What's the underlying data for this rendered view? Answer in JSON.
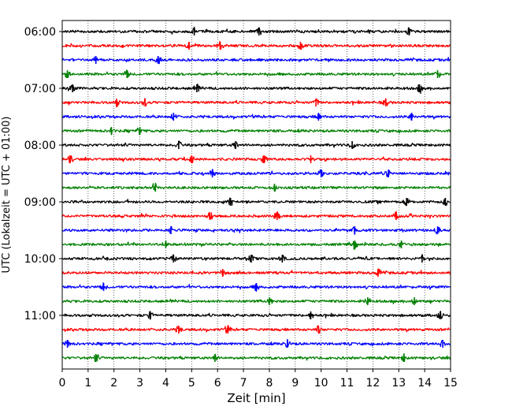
{
  "chart_data": {
    "type": "line",
    "title": "",
    "xlabel": "Zeit  [min]",
    "ylabel": "UTC (Lokalzeit = UTC + 01:00)",
    "xlim": [
      0,
      15
    ],
    "x_ticks": [
      "0",
      "1",
      "2",
      "3",
      "4",
      "5",
      "6",
      "7",
      "8",
      "9",
      "10",
      "11",
      "12",
      "13",
      "14",
      "15"
    ],
    "y_tick_labels": [
      "06:00",
      "07:00",
      "08:00",
      "09:00",
      "10:00",
      "11:00"
    ],
    "y_tick_rows": [
      0,
      4,
      8,
      12,
      16,
      20
    ],
    "grid": "vertical-dotted",
    "trace_colors": [
      "#000000",
      "#ff0000",
      "#0000ff",
      "#008000"
    ],
    "traces": [
      {
        "start": "06:00",
        "color": "#000000",
        "events_min": [
          5.1,
          7.6,
          13.4
        ]
      },
      {
        "start": "06:15",
        "color": "#ff0000",
        "events_min": [
          4.9,
          6.1,
          9.2
        ]
      },
      {
        "start": "06:30",
        "color": "#0000ff",
        "events_min": [
          1.3,
          3.7
        ]
      },
      {
        "start": "06:45",
        "color": "#008000",
        "events_min": [
          0.2,
          2.5,
          14.5
        ]
      },
      {
        "start": "07:00",
        "color": "#000000",
        "events_min": [
          0.4,
          5.2,
          13.8
        ]
      },
      {
        "start": "07:15",
        "color": "#ff0000",
        "events_min": [
          2.1,
          3.2,
          9.8,
          12.5
        ]
      },
      {
        "start": "07:30",
        "color": "#0000ff",
        "events_min": [
          4.3,
          9.9,
          13.5
        ]
      },
      {
        "start": "07:45",
        "color": "#008000",
        "events_min": [
          1.9,
          3.0
        ]
      },
      {
        "start": "08:00",
        "color": "#000000",
        "events_min": [
          4.5,
          6.7,
          11.2
        ]
      },
      {
        "start": "08:15",
        "color": "#ff0000",
        "events_min": [
          0.3,
          5.0,
          7.8,
          9.6
        ]
      },
      {
        "start": "08:30",
        "color": "#0000ff",
        "events_min": [
          5.8,
          10.0,
          12.6
        ]
      },
      {
        "start": "08:45",
        "color": "#008000",
        "events_min": [
          3.6,
          8.2
        ]
      },
      {
        "start": "09:00",
        "color": "#000000",
        "events_min": [
          6.5,
          13.3,
          14.8
        ]
      },
      {
        "start": "09:15",
        "color": "#ff0000",
        "events_min": [
          5.7,
          8.3,
          12.9
        ]
      },
      {
        "start": "09:30",
        "color": "#0000ff",
        "events_min": [
          4.2,
          11.3,
          14.5
        ]
      },
      {
        "start": "09:45",
        "color": "#008000",
        "events_min": [
          4.0,
          11.3,
          13.1
        ]
      },
      {
        "start": "10:00",
        "color": "#000000",
        "events_min": [
          4.3,
          7.3,
          8.5,
          13.9
        ]
      },
      {
        "start": "10:15",
        "color": "#ff0000",
        "events_min": [
          6.2,
          12.2
        ]
      },
      {
        "start": "10:30",
        "color": "#0000ff",
        "events_min": [
          1.6,
          7.5
        ]
      },
      {
        "start": "10:45",
        "color": "#008000",
        "events_min": [
          8.0,
          11.8,
          13.6
        ]
      },
      {
        "start": "11:00",
        "color": "#000000",
        "events_min": [
          3.4,
          9.6,
          14.6
        ]
      },
      {
        "start": "11:15",
        "color": "#ff0000",
        "events_min": [
          4.5,
          6.4,
          9.9
        ]
      },
      {
        "start": "11:30",
        "color": "#0000ff",
        "events_min": [
          0.2,
          8.7,
          14.7
        ]
      },
      {
        "start": "11:45",
        "color": "#008000",
        "events_min": [
          1.3,
          5.9,
          13.2
        ]
      }
    ]
  }
}
